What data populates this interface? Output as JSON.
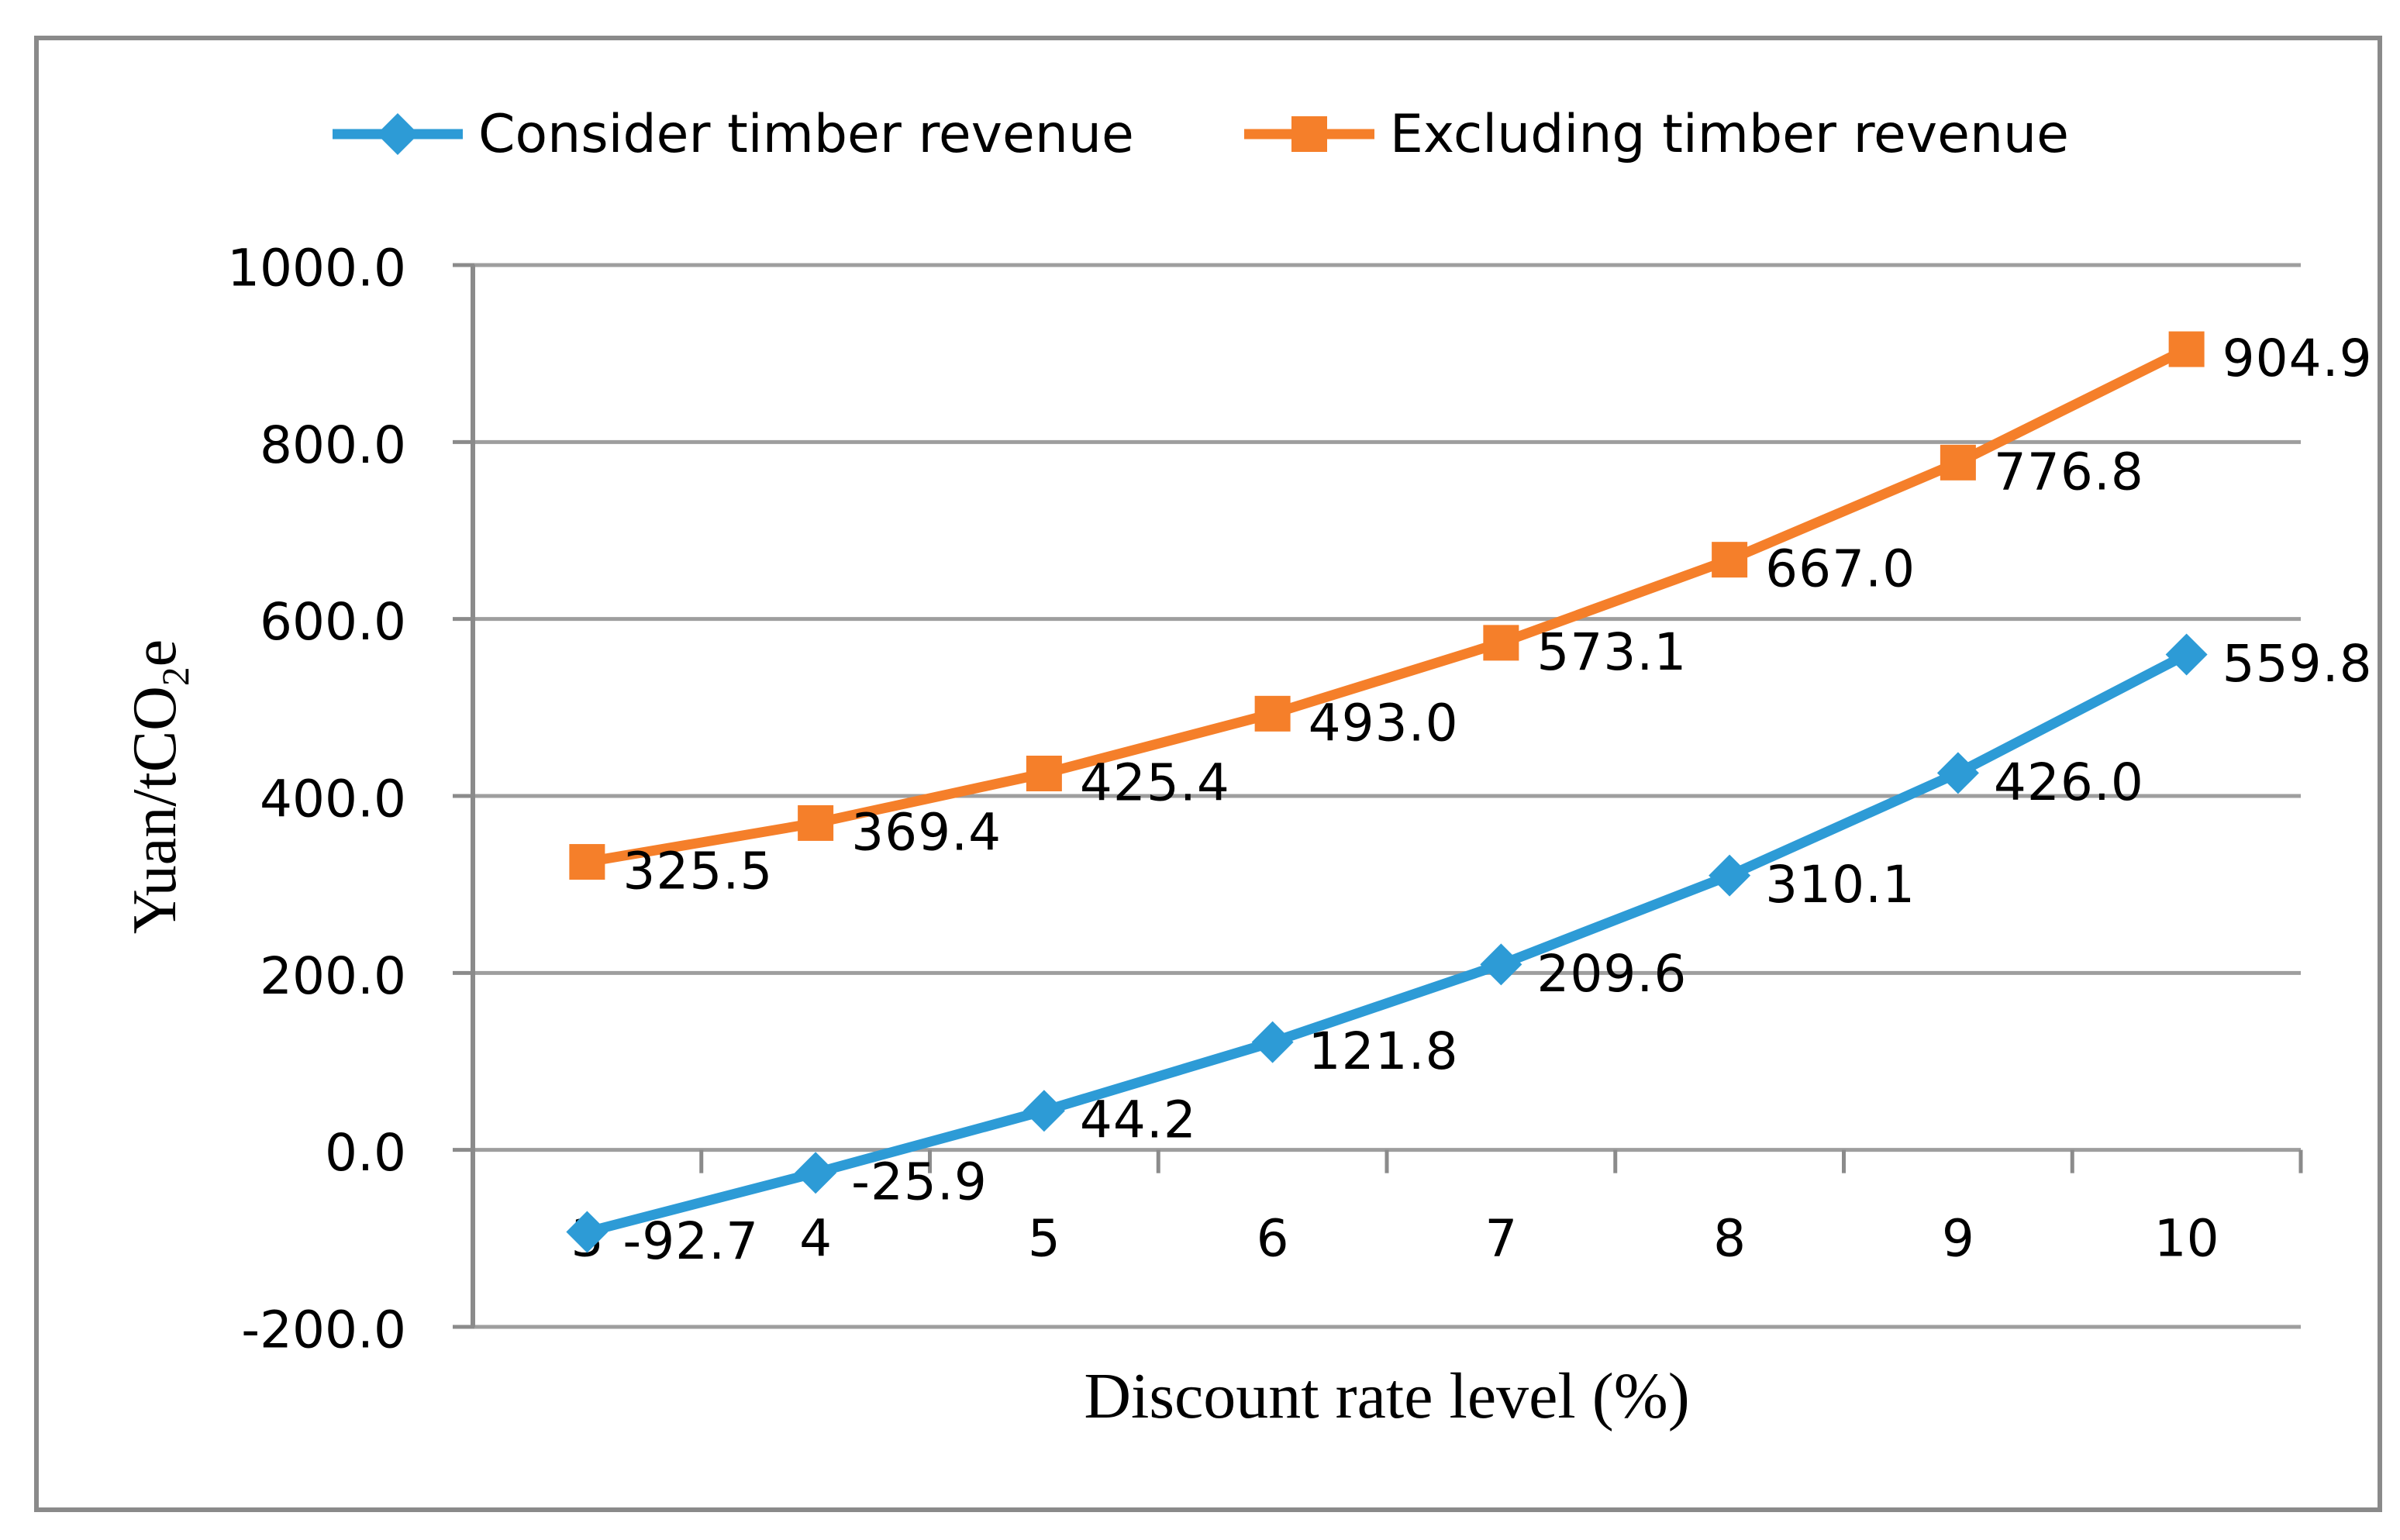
{
  "figure": {
    "background": "#FFFFFF",
    "border_color": "#8A8A8A"
  },
  "legend": {
    "items": [
      {
        "label": "Consider timber revenue",
        "color": "#2D9BD6",
        "marker": "diamond"
      },
      {
        "label": "Excluding timber revenue",
        "color": "#F57F2A",
        "marker": "square"
      }
    ]
  },
  "axes": {
    "x_title": "Discount rate level（%）",
    "y_title_prefix": "Yuan/tCO",
    "y_title_sub": "2",
    "y_title_suffix": "e",
    "x_ticks": [
      "3",
      "4",
      "5",
      "6",
      "7",
      "8",
      "9",
      "10"
    ],
    "y_ticks": [
      "1000.0",
      "800.0",
      "600.0",
      "400.0",
      "200.0",
      "0.0",
      "-200.0"
    ]
  },
  "chart_data": {
    "type": "line",
    "categories": [
      3,
      4,
      5,
      6,
      7,
      8,
      9,
      10
    ],
    "series": [
      {
        "name": "Consider timber revenue",
        "color": "#2D9BD6",
        "marker": "diamond",
        "values": [
          -92.7,
          -25.9,
          44.2,
          121.8,
          209.6,
          310.1,
          426.0,
          559.8
        ]
      },
      {
        "name": "Excluding timber revenue",
        "color": "#F57F2A",
        "marker": "square",
        "values": [
          325.5,
          369.4,
          425.4,
          493.0,
          573.1,
          667.0,
          776.8,
          904.9
        ]
      }
    ],
    "title": "",
    "xlabel": "Discount rate level（%）",
    "ylabel": "Yuan/tCO2e",
    "ylim": [
      -200,
      1000
    ],
    "ystep": 200,
    "grid": true,
    "legend_position": "top",
    "data_labels": "right",
    "grid_color": "#9E9E9E",
    "axis_color": "#8B8B8B"
  }
}
